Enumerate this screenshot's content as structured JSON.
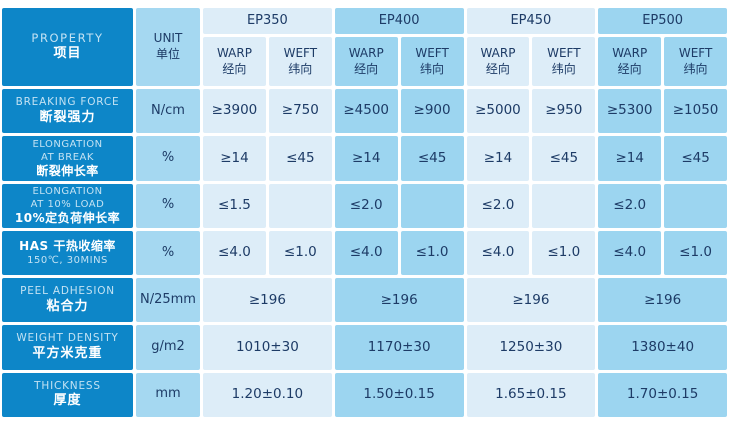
{
  "colors": {
    "property_bg": "#0d86c8",
    "unit_bg": "#a5d8f1",
    "group_light_bg": "#ddedf8",
    "group_medium_bg": "#9cd5f0",
    "text_navy": "#1d3b66",
    "text_white": "#ffffff",
    "text_light": "#c3e2f3"
  },
  "table": {
    "header": {
      "property_en": "PROPERTY",
      "property_zh": "项目",
      "unit_en": "UNIT",
      "unit_zh": "单位",
      "groups": [
        "EP350",
        "EP400",
        "EP450",
        "EP500"
      ],
      "warp_en": "WARP",
      "warp_zh": "经向",
      "weft_en": "WEFT",
      "weft_zh": "纬向"
    },
    "rows": [
      {
        "en": "BREAKING FORCE",
        "zh": "断裂强力",
        "unit": "N/cm",
        "values": [
          "≥3900",
          "≥750",
          "≥4500",
          "≥900",
          "≥5000",
          "≥950",
          "≥5300",
          "≥1050"
        ]
      },
      {
        "en1": "ELONGATION",
        "en2": "AT BREAK",
        "zh": "断裂伸长率",
        "unit": "%",
        "values": [
          "≥14",
          "≤45",
          "≥14",
          "≤45",
          "≥14",
          "≤45",
          "≥14",
          "≤45"
        ]
      },
      {
        "en1": "ELONGATION",
        "en2": "AT 10% LOAD",
        "zh": "10%定负荷伸长率",
        "unit": "%",
        "values": [
          "≤1.5",
          "",
          "≤2.0",
          "",
          "≤2.0",
          "",
          "≤2.0",
          ""
        ]
      },
      {
        "zh": "HAS  干热收缩率",
        "en": "150℃, 30MINS",
        "unit": "%",
        "values": [
          "≤4.0",
          "≤1.0",
          "≤4.0",
          "≤1.0",
          "≤4.0",
          "≤1.0",
          "≤4.0",
          "≤1.0"
        ]
      },
      {
        "en": "PEEL ADHESION",
        "zh": "粘合力",
        "unit": "N/25mm",
        "values": [
          "≥196",
          "≥196",
          "≥196",
          "≥196"
        ]
      },
      {
        "en": "WEIGHT DENSITY",
        "zh": "平方米克重",
        "unit": "g/m2",
        "values": [
          "1010±30",
          "1170±30",
          "1250±30",
          "1380±40"
        ]
      },
      {
        "en": "THICKNESS",
        "zh": "厚度",
        "unit": "mm",
        "values": [
          "1.20±0.10",
          "1.50±0.15",
          "1.65±0.15",
          "1.70±0.15"
        ]
      }
    ]
  }
}
